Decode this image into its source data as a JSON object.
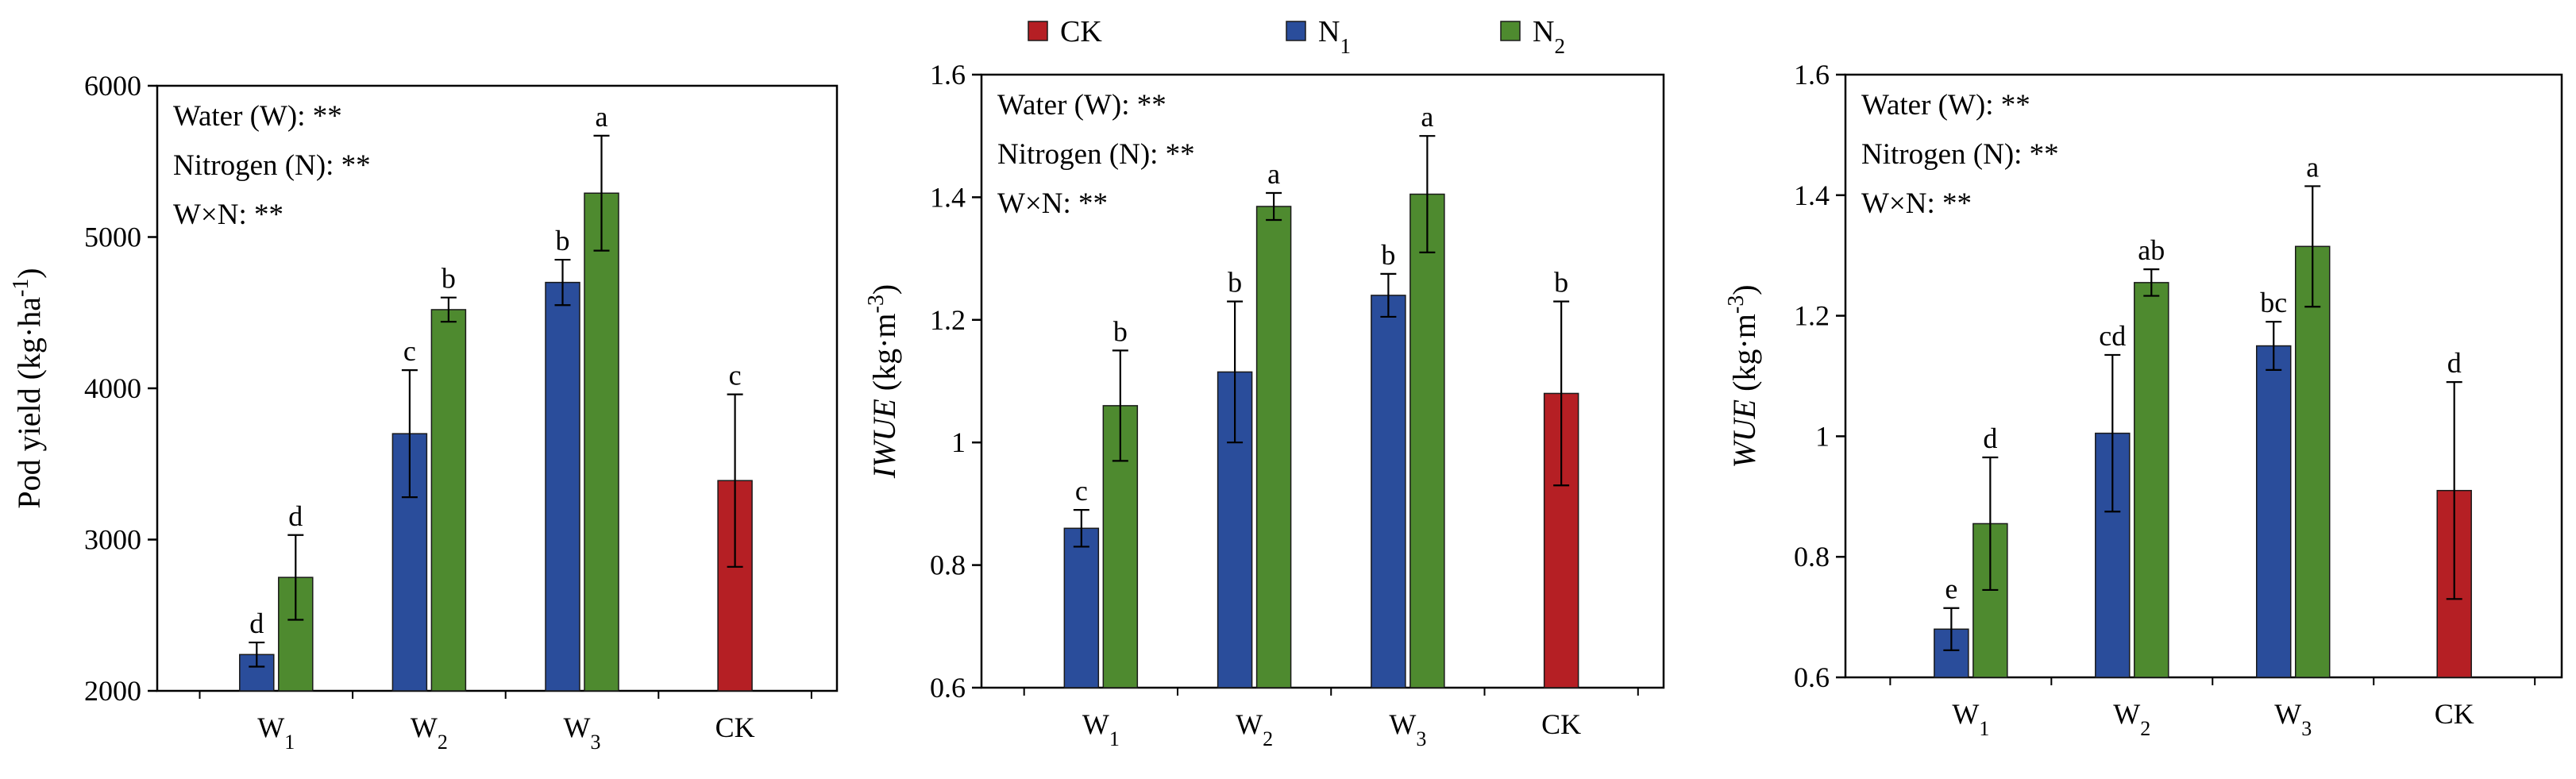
{
  "legend": [
    {
      "key": "ck",
      "label": "CK",
      "color": "#b51f24"
    },
    {
      "key": "n1",
      "label": "N",
      "sub": "1",
      "color": "#2a4d9b"
    },
    {
      "key": "n2",
      "label": "N",
      "sub": "2",
      "color": "#4e8a2f"
    }
  ],
  "chart_data": [
    {
      "type": "bar",
      "ylabel": {
        "main": "Pod yield (kg·ha",
        "sup": "-1",
        "end": ")",
        "italic": ""
      },
      "ylim": [
        2000,
        6000
      ],
      "yticks": [
        2000,
        3000,
        4000,
        5000,
        6000
      ],
      "tick_labels": [
        "2000",
        "3000",
        "4000",
        "5000",
        "6000"
      ],
      "annotations": [
        "Water (W): **",
        "Nitrogen (N): **",
        "W×N: **"
      ],
      "categories": [
        {
          "main": "W",
          "sub": "1"
        },
        {
          "main": "W",
          "sub": "2"
        },
        {
          "main": "W",
          "sub": "3"
        },
        {
          "main": "CK",
          "sub": ""
        }
      ],
      "series": [
        {
          "name": "N1",
          "color": "#2a4d9b",
          "values": [
            2240,
            3700,
            4700,
            null
          ],
          "errors": [
            80,
            420,
            150,
            null
          ],
          "letters": [
            "d",
            "c",
            "b",
            null
          ]
        },
        {
          "name": "N2",
          "color": "#4e8a2f",
          "values": [
            2750,
            4520,
            5290,
            null
          ],
          "errors": [
            280,
            80,
            380,
            null
          ],
          "letters": [
            "d",
            "b",
            "a",
            null
          ]
        },
        {
          "name": "CK",
          "color": "#b51f24",
          "values": [
            null,
            null,
            null,
            3390
          ],
          "errors": [
            null,
            null,
            null,
            570
          ],
          "letters": [
            null,
            null,
            null,
            "c"
          ]
        }
      ]
    },
    {
      "type": "bar",
      "ylabel": {
        "main": " (kg·m",
        "sup": "-3",
        "end": ")",
        "italic": "IWUE"
      },
      "ylim": [
        0.6,
        1.6
      ],
      "yticks": [
        0.6,
        0.8,
        1.0,
        1.2,
        1.4,
        1.6
      ],
      "tick_labels": [
        "0.6",
        "0.8",
        "1",
        "1.2",
        "1.4",
        "1.6"
      ],
      "annotations": [
        "Water (W): **",
        "Nitrogen (N): **",
        "W×N: **"
      ],
      "categories": [
        {
          "main": "W",
          "sub": "1"
        },
        {
          "main": "W",
          "sub": "2"
        },
        {
          "main": "W",
          "sub": "3"
        },
        {
          "main": "CK",
          "sub": ""
        }
      ],
      "series": [
        {
          "name": "N1",
          "color": "#2a4d9b",
          "values": [
            0.86,
            1.115,
            1.24,
            null
          ],
          "errors": [
            0.03,
            0.115,
            0.035,
            null
          ],
          "letters": [
            "c",
            "b",
            "b",
            null
          ]
        },
        {
          "name": "N2",
          "color": "#4e8a2f",
          "values": [
            1.06,
            1.385,
            1.405,
            null
          ],
          "errors": [
            0.09,
            0.022,
            0.095,
            null
          ],
          "letters": [
            "b",
            "a",
            "a",
            null
          ]
        },
        {
          "name": "CK",
          "color": "#b51f24",
          "values": [
            null,
            null,
            null,
            1.08
          ],
          "errors": [
            null,
            null,
            null,
            0.15
          ],
          "letters": [
            null,
            null,
            null,
            "b"
          ]
        }
      ]
    },
    {
      "type": "bar",
      "ylabel": {
        "main": " (kg·m",
        "sup": "-3",
        "end": ")",
        "italic": "WUE"
      },
      "ylim": [
        0.6,
        1.6
      ],
      "yticks": [
        0.6,
        0.8,
        1.0,
        1.2,
        1.4,
        1.6
      ],
      "tick_labels": [
        "0.6",
        "0.8",
        "1",
        "1.2",
        "1.4",
        "1.6"
      ],
      "annotations": [
        "Water (W): **",
        "Nitrogen (N): **",
        "W×N: **"
      ],
      "categories": [
        {
          "main": "W",
          "sub": "1"
        },
        {
          "main": "W",
          "sub": "2"
        },
        {
          "main": "W",
          "sub": "3"
        },
        {
          "main": "CK",
          "sub": ""
        }
      ],
      "series": [
        {
          "name": "N1",
          "color": "#2a4d9b",
          "values": [
            0.68,
            1.005,
            1.15,
            null
          ],
          "errors": [
            0.035,
            0.13,
            0.04,
            null
          ],
          "letters": [
            "e",
            "cd",
            "bc",
            null
          ]
        },
        {
          "name": "N2",
          "color": "#4e8a2f",
          "values": [
            0.855,
            1.255,
            1.315,
            null
          ],
          "errors": [
            0.11,
            0.022,
            0.1,
            null
          ],
          "letters": [
            "d",
            "ab",
            "a",
            null
          ]
        },
        {
          "name": "CK",
          "color": "#b51f24",
          "values": [
            null,
            null,
            null,
            0.91
          ],
          "errors": [
            null,
            null,
            null,
            0.18
          ],
          "letters": [
            null,
            null,
            null,
            "d"
          ]
        }
      ]
    }
  ]
}
